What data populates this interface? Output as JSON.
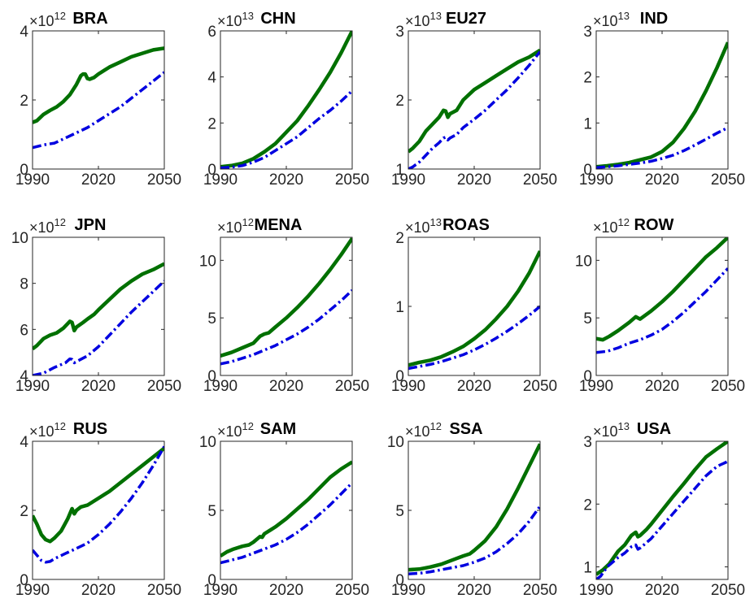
{
  "figure": {
    "xticks": [
      1990,
      2020,
      2050
    ],
    "colors": {
      "solid": "#007000",
      "dashed": "#0000e0"
    }
  },
  "chart_data": [
    {
      "type": "line",
      "title": "BRA",
      "exp_base": "×10",
      "exponent": "12",
      "xlim": [
        1990,
        2050
      ],
      "ylim": [
        0,
        4
      ],
      "yticks": [
        0,
        2,
        4
      ],
      "series": [
        {
          "style": "solid",
          "x": [
            1990,
            1992,
            1995,
            1998,
            2001,
            2004,
            2007,
            2010,
            2012,
            2013,
            2014,
            2015,
            2016,
            2018,
            2020,
            2025,
            2030,
            2035,
            2040,
            2045,
            2050
          ],
          "values": [
            1.35,
            1.4,
            1.58,
            1.7,
            1.8,
            1.95,
            2.15,
            2.45,
            2.7,
            2.75,
            2.75,
            2.62,
            2.6,
            2.65,
            2.75,
            2.95,
            3.1,
            3.25,
            3.35,
            3.45,
            3.5
          ]
        },
        {
          "style": "dashed",
          "x": [
            1990,
            1995,
            2000,
            2005,
            2010,
            2015,
            2020,
            2025,
            2030,
            2035,
            2040,
            2045,
            2050
          ],
          "values": [
            0.62,
            0.7,
            0.75,
            0.9,
            1.05,
            1.2,
            1.4,
            1.6,
            1.8,
            2.05,
            2.3,
            2.55,
            2.8
          ]
        }
      ]
    },
    {
      "type": "line",
      "title": "CHN",
      "exp_base": "×10",
      "exponent": "13",
      "xlim": [
        1990,
        2050
      ],
      "ylim": [
        0,
        6
      ],
      "yticks": [
        0,
        2,
        4,
        6
      ],
      "series": [
        {
          "style": "solid",
          "x": [
            1990,
            1995,
            2000,
            2005,
            2010,
            2015,
            2020,
            2025,
            2030,
            2035,
            2040,
            2045,
            2050
          ],
          "values": [
            0.1,
            0.15,
            0.25,
            0.45,
            0.75,
            1.1,
            1.6,
            2.1,
            2.75,
            3.45,
            4.2,
            5.05,
            6.0
          ]
        },
        {
          "style": "dashed",
          "x": [
            1990,
            1995,
            2000,
            2005,
            2010,
            2015,
            2020,
            2025,
            2030,
            2035,
            2040,
            2045,
            2050
          ],
          "values": [
            0.05,
            0.08,
            0.15,
            0.3,
            0.5,
            0.8,
            1.1,
            1.4,
            1.8,
            2.2,
            2.55,
            2.95,
            3.4
          ]
        }
      ]
    },
    {
      "type": "line",
      "title": "EU27",
      "exp_base": "×10",
      "exponent": "13",
      "xlim": [
        1990,
        2050
      ],
      "ylim": [
        1,
        3
      ],
      "yticks": [
        1,
        2,
        3
      ],
      "series": [
        {
          "style": "solid",
          "x": [
            1990,
            1992,
            1995,
            1998,
            2001,
            2004,
            2006,
            2007,
            2008,
            2009,
            2012,
            2015,
            2020,
            2025,
            2030,
            2035,
            2040,
            2045,
            2050
          ],
          "values": [
            1.25,
            1.3,
            1.4,
            1.55,
            1.65,
            1.75,
            1.85,
            1.84,
            1.75,
            1.8,
            1.85,
            2.0,
            2.15,
            2.25,
            2.35,
            2.45,
            2.55,
            2.62,
            2.72
          ]
        },
        {
          "style": "dashed",
          "x": [
            1990,
            1992,
            1995,
            1998,
            2001,
            2004,
            2006,
            2007,
            2008,
            2009,
            2012,
            2015,
            2020,
            2025,
            2030,
            2035,
            2040,
            2045,
            2050
          ],
          "values": [
            1.0,
            1.03,
            1.1,
            1.2,
            1.3,
            1.38,
            1.45,
            1.46,
            1.42,
            1.45,
            1.5,
            1.6,
            1.72,
            1.85,
            2.0,
            2.15,
            2.32,
            2.5,
            2.7
          ]
        }
      ]
    },
    {
      "type": "line",
      "title": "IND",
      "exp_base": "×10",
      "exponent": "13",
      "xlim": [
        1990,
        2050
      ],
      "ylim": [
        0,
        3
      ],
      "yticks": [
        0,
        1,
        2,
        3
      ],
      "series": [
        {
          "style": "solid",
          "x": [
            1990,
            1995,
            2000,
            2005,
            2010,
            2015,
            2020,
            2025,
            2030,
            2035,
            2040,
            2045,
            2050
          ],
          "values": [
            0.05,
            0.07,
            0.1,
            0.14,
            0.2,
            0.26,
            0.38,
            0.58,
            0.88,
            1.25,
            1.7,
            2.2,
            2.75
          ]
        },
        {
          "style": "dashed",
          "x": [
            1990,
            1995,
            2000,
            2005,
            2010,
            2015,
            2020,
            2025,
            2030,
            2035,
            2040,
            2045,
            2050
          ],
          "values": [
            0.03,
            0.05,
            0.07,
            0.1,
            0.13,
            0.17,
            0.23,
            0.3,
            0.4,
            0.52,
            0.65,
            0.78,
            0.9
          ]
        }
      ]
    },
    {
      "type": "line",
      "title": "JPN",
      "exp_base": "×10",
      "exponent": "12",
      "xlim": [
        1990,
        2050
      ],
      "ylim": [
        4,
        10
      ],
      "yticks": [
        4,
        6,
        8,
        10
      ],
      "series": [
        {
          "style": "solid",
          "x": [
            1990,
            1992,
            1995,
            1998,
            2001,
            2004,
            2007,
            2008,
            2009,
            2010,
            2013,
            2015,
            2018,
            2020,
            2025,
            2030,
            2035,
            2040,
            2045,
            2050
          ],
          "values": [
            5.15,
            5.3,
            5.6,
            5.75,
            5.85,
            6.05,
            6.35,
            6.3,
            5.95,
            6.1,
            6.3,
            6.45,
            6.65,
            6.85,
            7.3,
            7.75,
            8.1,
            8.4,
            8.6,
            8.85
          ]
        },
        {
          "style": "dashed",
          "x": [
            1990,
            1995,
            2000,
            2005,
            2007,
            2008,
            2009,
            2010,
            2015,
            2020,
            2025,
            2030,
            2035,
            2040,
            2045,
            2050
          ],
          "values": [
            4.0,
            4.1,
            4.35,
            4.55,
            4.72,
            4.7,
            4.55,
            4.6,
            4.85,
            5.25,
            5.75,
            6.25,
            6.75,
            7.2,
            7.65,
            8.1
          ]
        }
      ]
    },
    {
      "type": "line",
      "title": "MENA",
      "exp_base": "×10",
      "exponent": "12",
      "xlim": [
        1990,
        2050
      ],
      "ylim": [
        0,
        12
      ],
      "yticks": [
        0,
        5,
        10
      ],
      "series": [
        {
          "style": "solid",
          "x": [
            1990,
            1995,
            2000,
            2005,
            2008,
            2010,
            2012,
            2015,
            2020,
            2025,
            2030,
            2035,
            2040,
            2045,
            2050
          ],
          "values": [
            1.7,
            2.0,
            2.4,
            2.8,
            3.4,
            3.6,
            3.7,
            4.2,
            5.0,
            5.9,
            6.9,
            8.0,
            9.2,
            10.5,
            11.9
          ]
        },
        {
          "style": "dashed",
          "x": [
            1990,
            1995,
            2000,
            2005,
            2010,
            2015,
            2020,
            2025,
            2030,
            2035,
            2040,
            2045,
            2050
          ],
          "values": [
            1.0,
            1.2,
            1.5,
            1.8,
            2.2,
            2.6,
            3.1,
            3.6,
            4.2,
            4.9,
            5.7,
            6.5,
            7.4
          ]
        }
      ]
    },
    {
      "type": "line",
      "title": "ROAS",
      "exp_base": "×10",
      "exponent": "13",
      "xlim": [
        1990,
        2050
      ],
      "ylim": [
        0,
        2
      ],
      "yticks": [
        0,
        1,
        2
      ],
      "series": [
        {
          "style": "solid",
          "x": [
            1990,
            1995,
            2000,
            2005,
            2010,
            2015,
            2020,
            2025,
            2030,
            2035,
            2040,
            2045,
            2050
          ],
          "values": [
            0.15,
            0.19,
            0.22,
            0.27,
            0.34,
            0.42,
            0.53,
            0.66,
            0.82,
            1.0,
            1.22,
            1.48,
            1.8
          ]
        },
        {
          "style": "dashed",
          "x": [
            1990,
            1995,
            2000,
            2005,
            2010,
            2015,
            2020,
            2025,
            2030,
            2035,
            2040,
            2045,
            2050
          ],
          "values": [
            0.1,
            0.13,
            0.16,
            0.2,
            0.25,
            0.3,
            0.37,
            0.45,
            0.54,
            0.64,
            0.75,
            0.87,
            1.0
          ]
        }
      ]
    },
    {
      "type": "line",
      "title": "ROW",
      "exp_base": "×10",
      "exponent": "12",
      "xlim": [
        1990,
        2050
      ],
      "ylim": [
        0,
        12
      ],
      "yticks": [
        0,
        5,
        10
      ],
      "series": [
        {
          "style": "solid",
          "x": [
            1990,
            1993,
            1996,
            2000,
            2005,
            2008,
            2009,
            2010,
            2015,
            2020,
            2025,
            2030,
            2035,
            2040,
            2045,
            2050
          ],
          "values": [
            3.2,
            3.1,
            3.4,
            3.9,
            4.6,
            5.1,
            5.0,
            4.9,
            5.6,
            6.4,
            7.3,
            8.3,
            9.3,
            10.3,
            11.1,
            12.0
          ]
        },
        {
          "style": "dashed",
          "x": [
            1990,
            1995,
            2000,
            2005,
            2010,
            2015,
            2020,
            2025,
            2030,
            2035,
            2040,
            2045,
            2050
          ],
          "values": [
            2.0,
            2.1,
            2.4,
            2.8,
            3.1,
            3.5,
            4.0,
            4.7,
            5.5,
            6.4,
            7.3,
            8.3,
            9.3
          ]
        }
      ]
    },
    {
      "type": "line",
      "title": "RUS",
      "exp_base": "×10",
      "exponent": "12",
      "xlim": [
        1990,
        2050
      ],
      "ylim": [
        0,
        4
      ],
      "yticks": [
        0,
        2,
        4
      ],
      "series": [
        {
          "style": "solid",
          "x": [
            1990,
            1992,
            1994,
            1996,
            1998,
            2000,
            2003,
            2006,
            2008,
            2009,
            2010,
            2012,
            2015,
            2020,
            2025,
            2030,
            2035,
            2040,
            2045,
            2050
          ],
          "values": [
            1.85,
            1.6,
            1.3,
            1.15,
            1.1,
            1.2,
            1.4,
            1.75,
            2.05,
            1.9,
            2.0,
            2.1,
            2.15,
            2.35,
            2.55,
            2.8,
            3.05,
            3.3,
            3.55,
            3.8
          ]
        },
        {
          "style": "dashed",
          "x": [
            1990,
            1992,
            1994,
            1996,
            1998,
            2000,
            2005,
            2010,
            2015,
            2020,
            2025,
            2030,
            2035,
            2040,
            2045,
            2050
          ],
          "values": [
            0.85,
            0.7,
            0.55,
            0.5,
            0.52,
            0.6,
            0.75,
            0.9,
            1.05,
            1.3,
            1.6,
            1.95,
            2.35,
            2.8,
            3.3,
            3.85
          ]
        }
      ]
    },
    {
      "type": "line",
      "title": "SAM",
      "exp_base": "×10",
      "exponent": "12",
      "xlim": [
        1990,
        2050
      ],
      "ylim": [
        0,
        10
      ],
      "yticks": [
        0,
        5,
        10
      ],
      "series": [
        {
          "style": "solid",
          "x": [
            1990,
            1993,
            1996,
            2000,
            2003,
            2005,
            2008,
            2009,
            2010,
            2013,
            2015,
            2020,
            2025,
            2030,
            2035,
            2040,
            2045,
            2050
          ],
          "values": [
            1.7,
            2.0,
            2.2,
            2.4,
            2.5,
            2.7,
            3.1,
            3.05,
            3.3,
            3.6,
            3.8,
            4.4,
            5.1,
            5.8,
            6.6,
            7.4,
            8.0,
            8.5
          ]
        },
        {
          "style": "dashed",
          "x": [
            1990,
            1995,
            2000,
            2005,
            2010,
            2015,
            2020,
            2025,
            2030,
            2035,
            2040,
            2045,
            2050
          ],
          "values": [
            1.2,
            1.4,
            1.6,
            1.9,
            2.2,
            2.5,
            2.9,
            3.4,
            4.0,
            4.7,
            5.4,
            6.2,
            7.0
          ]
        }
      ]
    },
    {
      "type": "line",
      "title": "SSA",
      "exp_base": "×10",
      "exponent": "12",
      "xlim": [
        1990,
        2050
      ],
      "ylim": [
        0,
        10
      ],
      "yticks": [
        0,
        5,
        10
      ],
      "series": [
        {
          "style": "solid",
          "x": [
            1990,
            1995,
            2000,
            2005,
            2010,
            2015,
            2018,
            2020,
            2025,
            2030,
            2035,
            2040,
            2045,
            2050
          ],
          "values": [
            0.7,
            0.75,
            0.9,
            1.1,
            1.4,
            1.7,
            1.85,
            2.1,
            2.8,
            3.8,
            5.1,
            6.6,
            8.2,
            9.8
          ]
        },
        {
          "style": "dashed",
          "x": [
            1990,
            1995,
            2000,
            2005,
            2010,
            2015,
            2020,
            2025,
            2030,
            2035,
            2040,
            2045,
            2050
          ],
          "values": [
            0.4,
            0.45,
            0.55,
            0.7,
            0.85,
            1.0,
            1.25,
            1.55,
            2.0,
            2.6,
            3.3,
            4.2,
            5.3
          ]
        }
      ]
    },
    {
      "type": "line",
      "title": "USA",
      "exp_base": "×10",
      "exponent": "13",
      "xlim": [
        1990,
        2050
      ],
      "ylim": [
        0.8,
        3
      ],
      "yticks": [
        1,
        2,
        3
      ],
      "series": [
        {
          "style": "solid",
          "x": [
            1990,
            1993,
            1996,
            2000,
            2003,
            2006,
            2008,
            2009,
            2010,
            2013,
            2015,
            2020,
            2025,
            2030,
            2035,
            2040,
            2045,
            2050
          ],
          "values": [
            0.88,
            0.95,
            1.05,
            1.25,
            1.35,
            1.5,
            1.55,
            1.48,
            1.5,
            1.6,
            1.68,
            1.9,
            2.12,
            2.33,
            2.55,
            2.75,
            2.88,
            3.0
          ]
        },
        {
          "style": "dashed",
          "x": [
            1990,
            1992,
            1995,
            2000,
            2003,
            2006,
            2008,
            2009,
            2010,
            2015,
            2020,
            2025,
            2030,
            2035,
            2040,
            2045,
            2050
          ],
          "values": [
            0.8,
            0.85,
            1.0,
            1.15,
            1.22,
            1.32,
            1.35,
            1.28,
            1.3,
            1.45,
            1.65,
            1.85,
            2.05,
            2.25,
            2.45,
            2.6,
            2.68
          ]
        }
      ]
    }
  ]
}
